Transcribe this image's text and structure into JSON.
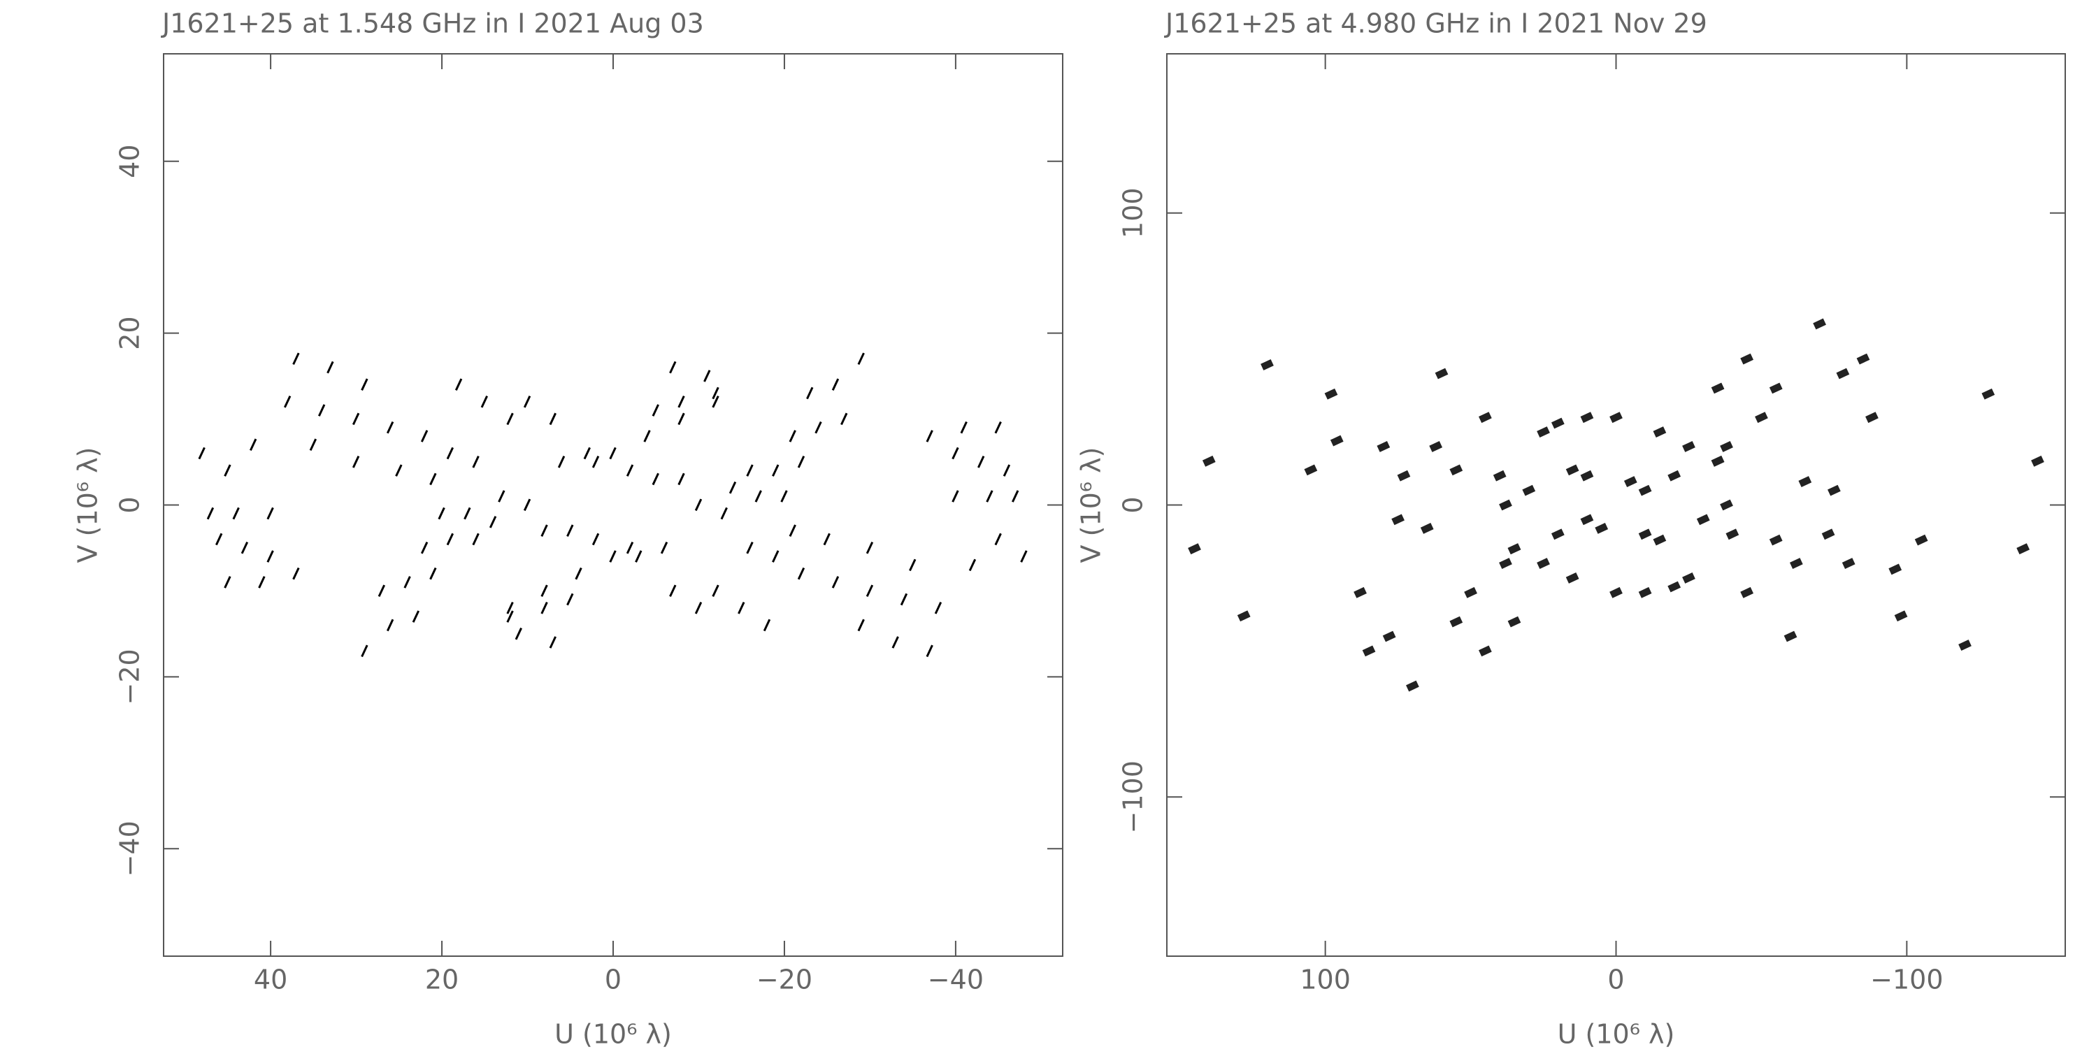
{
  "chart_data": [
    {
      "type": "scatter",
      "title": "J1621+25 at 1.548 GHz in I  2021 Aug 03",
      "x_label": "U (10⁶ λ)",
      "y_label": "V (10⁶ λ)",
      "xlim": [
        52.5,
        -52.5
      ],
      "ylim": [
        -52.5,
        52.5
      ],
      "xticks": [
        40,
        20,
        0,
        {
          "value": -20,
          "label": "−20"
        },
        {
          "value": -40,
          "label": "−40"
        }
      ],
      "yticks": [
        {
          "value": -40,
          "label": "−40"
        },
        {
          "value": -20,
          "label": "−20"
        },
        0,
        20,
        40
      ],
      "color": "#000000",
      "x": [
        48,
        45,
        42,
        47,
        44,
        40,
        46,
        43,
        40,
        45,
        41,
        37,
        37,
        33,
        29,
        38,
        34,
        30,
        26,
        35,
        30,
        25,
        21,
        22,
        19,
        16,
        20,
        17,
        14,
        22,
        19,
        16,
        27,
        24,
        21,
        29,
        26,
        23,
        18,
        15,
        12,
        13,
        10,
        8,
        6,
        3,
        0,
        5,
        2,
        -2,
        -5,
        -8,
        -12,
        -7,
        -10,
        4,
        8,
        12,
        11,
        7,
        -48,
        -45,
        -42,
        -47,
        -44,
        -40,
        -46,
        -43,
        -40,
        -45,
        -41,
        -37,
        -37,
        -33,
        -29,
        -38,
        -34,
        -30,
        -26,
        -35,
        -30,
        -25,
        -21,
        -22,
        -19,
        -16,
        -20,
        -17,
        -14,
        -22,
        -19,
        -16,
        -27,
        -24,
        -21,
        -29,
        -26,
        -23,
        -18,
        -15,
        -12,
        -13,
        -10,
        -8,
        -6,
        -3,
        0,
        -5,
        -2,
        2,
        5,
        8,
        12,
        7,
        10,
        -4,
        -8,
        -12,
        -11,
        -7
      ],
      "y": [
        6,
        4,
        7,
        -1,
        -1,
        -1,
        -4,
        -5,
        -6,
        -9,
        -9,
        -8,
        17,
        16,
        14,
        12,
        11,
        10,
        9,
        7,
        5,
        4,
        3,
        8,
        6,
        5,
        -1,
        -1,
        -2,
        -5,
        -4,
        -4,
        -10,
        -9,
        -8,
        -17,
        -14,
        -13,
        14,
        12,
        10,
        1,
        0,
        -3,
        5,
        6,
        6,
        -3,
        -4,
        -5,
        11,
        12,
        13,
        -10,
        -12,
        -8,
        -10,
        -12,
        -15,
        -16,
        -6,
        -4,
        -7,
        1,
        1,
        1,
        4,
        5,
        6,
        9,
        9,
        8,
        -17,
        -16,
        -14,
        -12,
        -11,
        -10,
        -9,
        -7,
        -5,
        -4,
        -3,
        -8,
        -6,
        -5,
        1,
        1,
        2,
        5,
        4,
        4,
        10,
        9,
        8,
        17,
        14,
        13,
        -14,
        -12,
        -10,
        -1,
        0,
        3,
        -5,
        -6,
        -6,
        3,
        4,
        5,
        -11,
        -12,
        -13,
        10,
        12,
        8,
        10,
        12,
        15,
        16
      ]
    },
    {
      "type": "scatter",
      "title": "J1621+25 at 4.980 GHz in I  2021 Nov 29",
      "x_label": "U (10⁶ λ)",
      "y_label": "V (10⁶ λ)",
      "xlim": [
        154.5,
        -154.5
      ],
      "ylim": [
        -154.5,
        154.5
      ],
      "xticks": [
        100,
        0,
        {
          "value": -100,
          "label": "−100"
        }
      ],
      "yticks": [
        {
          "value": -100,
          "label": "−100"
        },
        0,
        100
      ],
      "color": "#222222",
      "x": [
        140,
        145,
        128,
        120,
        105,
        98,
        96,
        88,
        85,
        80,
        75,
        73,
        70,
        78,
        65,
        60,
        62,
        55,
        50,
        45,
        40,
        38,
        35,
        30,
        25,
        20,
        10,
        0,
        -15,
        -25,
        -35,
        -38,
        20,
        10,
        5,
        -10,
        -15,
        35,
        45,
        55,
        -140,
        -145,
        -128,
        -120,
        -105,
        -98,
        -96,
        -88,
        -85,
        -80,
        -75,
        -73,
        -70,
        -78,
        -65,
        -60,
        -62,
        -55,
        -50,
        -45,
        -40,
        -38,
        -35,
        -30,
        -25,
        -20,
        -10,
        0,
        15,
        25,
        35,
        38,
        -20,
        -10,
        -5,
        10,
        15,
        -35,
        -45,
        -55
      ],
      "y": [
        15,
        -15,
        -38,
        48,
        12,
        38,
        22,
        -30,
        -50,
        20,
        -5,
        10,
        -62,
        -45,
        -8,
        45,
        20,
        12,
        -30,
        30,
        10,
        -20,
        -40,
        5,
        25,
        28,
        30,
        30,
        25,
        20,
        15,
        0,
        -10,
        10,
        -8,
        5,
        -12,
        -15,
        -50,
        -40,
        -15,
        15,
        38,
        -48,
        -12,
        -38,
        -22,
        30,
        50,
        -20,
        5,
        -10,
        62,
        45,
        8,
        -45,
        -20,
        -12,
        30,
        -30,
        -10,
        20,
        40,
        -5,
        -25,
        -28,
        -30,
        -30,
        -25,
        -20,
        -15,
        0,
        10,
        -10,
        8,
        -5,
        12,
        15,
        50,
        40
      ]
    }
  ]
}
